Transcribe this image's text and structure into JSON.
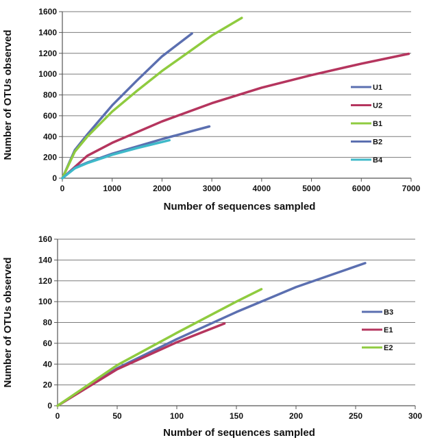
{
  "chart_data": [
    {
      "type": "line",
      "xlabel": "Number of sequences sampled",
      "ylabel": "Number of OTUs observed",
      "xlim": [
        0,
        7000
      ],
      "ylim": [
        0,
        1600
      ],
      "xticks": [
        0,
        1000,
        2000,
        3000,
        4000,
        5000,
        6000,
        7000
      ],
      "yticks": [
        0,
        200,
        400,
        600,
        800,
        1000,
        1200,
        1400,
        1600
      ],
      "grid": "horizontal",
      "legend_position": "right",
      "series": [
        {
          "name": "U1",
          "color": "#5b6fb0",
          "x": [
            0,
            250,
            500,
            1000,
            1500,
            2000,
            2600
          ],
          "y": [
            0,
            270,
            420,
            700,
            940,
            1170,
            1390
          ]
        },
        {
          "name": "U2",
          "color": "#b5355e",
          "x": [
            0,
            500,
            1000,
            2000,
            3000,
            4000,
            5000,
            6000,
            6950
          ],
          "y": [
            0,
            215,
            340,
            545,
            720,
            870,
            990,
            1100,
            1195
          ]
        },
        {
          "name": "B1",
          "color": "#8fcb3f",
          "x": [
            0,
            250,
            500,
            1000,
            1500,
            2000,
            2500,
            3000,
            3600
          ],
          "y": [
            0,
            255,
            400,
            640,
            840,
            1030,
            1200,
            1370,
            1540
          ]
        },
        {
          "name": "B2",
          "color": "#5b6fb0",
          "x": [
            0,
            250,
            500,
            1000,
            1500,
            2000,
            2500,
            2950
          ],
          "y": [
            0,
            100,
            150,
            235,
            305,
            375,
            440,
            497
          ]
        },
        {
          "name": "B4",
          "color": "#3fb9c9",
          "x": [
            0,
            250,
            500,
            1000,
            1500,
            2150
          ],
          "y": [
            0,
            95,
            145,
            225,
            290,
            365
          ]
        }
      ]
    },
    {
      "type": "line",
      "xlabel": "Number of sequences sampled",
      "ylabel": "Number of OTUs observed",
      "xlim": [
        0,
        300
      ],
      "ylim": [
        0,
        160
      ],
      "xticks": [
        0,
        50,
        100,
        150,
        200,
        250,
        300
      ],
      "yticks": [
        0,
        20,
        40,
        60,
        80,
        100,
        120,
        140,
        160
      ],
      "grid": "horizontal",
      "legend_position": "right",
      "series": [
        {
          "name": "B3",
          "color": "#5b6fb0",
          "x": [
            0,
            50,
            100,
            150,
            200,
            258
          ],
          "y": [
            0,
            36,
            64,
            90,
            114,
            137
          ]
        },
        {
          "name": "E1",
          "color": "#b5355e",
          "x": [
            0,
            50,
            100,
            140
          ],
          "y": [
            0,
            35,
            61,
            79
          ]
        },
        {
          "name": "E2",
          "color": "#8fcb3f",
          "x": [
            0,
            50,
            100,
            150,
            171
          ],
          "y": [
            0,
            39,
            70,
            100,
            112
          ]
        }
      ]
    }
  ]
}
